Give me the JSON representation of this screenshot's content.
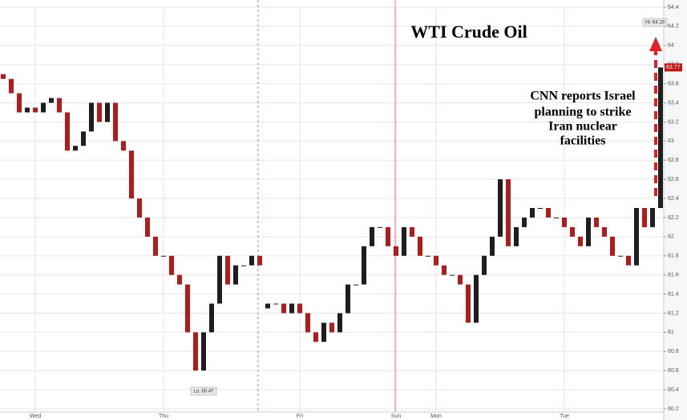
{
  "chart_data": {
    "type": "candlestick",
    "title": "WTI Crude Oil",
    "categories": [
      null,
      null,
      null,
      null,
      "Wed",
      null,
      null,
      null,
      null,
      null,
      null,
      null,
      null,
      null,
      null,
      null,
      null,
      null,
      null,
      null,
      "Thu",
      null,
      null,
      null,
      null,
      null,
      null,
      null,
      null,
      null,
      null,
      null,
      null,
      null,
      null,
      null,
      null,
      "Fri",
      null,
      null,
      null,
      null,
      null,
      null,
      null,
      null,
      null,
      null,
      null,
      "Sun",
      null,
      null,
      null,
      null,
      "Mon",
      null,
      null,
      null,
      null,
      null,
      null,
      null,
      null,
      null,
      null,
      null,
      null,
      null,
      null,
      null,
      "Tue",
      null,
      null,
      null,
      null,
      null,
      null,
      null,
      null,
      null,
      null,
      null,
      null
    ],
    "open": [
      63.7,
      63.65,
      63.5,
      63.3,
      63.35,
      63.3,
      63.4,
      63.45,
      63.3,
      62.9,
      62.95,
      63.1,
      63.4,
      63.2,
      63.4,
      63.0,
      62.9,
      62.4,
      62.2,
      62.0,
      61.8,
      61.8,
      61.6,
      61.5,
      61.0,
      60.6,
      61.0,
      61.3,
      61.8,
      61.5,
      61.7,
      61.7,
      61.8,
      61.25,
      61.3,
      61.3,
      61.2,
      61.3,
      61.2,
      61.0,
      60.9,
      61.1,
      61.0,
      61.2,
      61.5,
      61.5,
      61.9,
      62.1,
      62.1,
      61.9,
      61.8,
      62.1,
      62.0,
      61.8,
      61.8,
      61.7,
      61.6,
      61.6,
      61.5,
      61.1,
      61.6,
      61.8,
      62.0,
      62.6,
      61.9,
      62.1,
      62.2,
      62.3,
      62.3,
      62.2,
      62.2,
      62.1,
      62.0,
      61.9,
      62.2,
      62.1,
      62.0,
      61.8,
      61.8,
      61.7,
      62.3,
      62.1,
      62.3
    ],
    "close": [
      63.65,
      63.5,
      63.3,
      63.35,
      63.3,
      63.4,
      63.45,
      63.3,
      62.9,
      62.95,
      63.1,
      63.4,
      63.2,
      63.4,
      63.0,
      62.9,
      62.4,
      62.2,
      62.0,
      61.8,
      61.8,
      61.6,
      61.5,
      61.0,
      60.6,
      61.0,
      61.3,
      61.8,
      61.5,
      61.7,
      61.7,
      61.8,
      61.7,
      61.3,
      61.3,
      61.2,
      61.3,
      61.2,
      61.0,
      60.9,
      61.1,
      61.0,
      61.2,
      61.5,
      61.5,
      61.9,
      62.1,
      62.1,
      61.9,
      61.8,
      62.1,
      62.0,
      61.8,
      61.8,
      61.7,
      61.6,
      61.6,
      61.5,
      61.1,
      61.6,
      61.8,
      62.0,
      62.6,
      61.9,
      62.1,
      62.2,
      62.3,
      62.3,
      62.2,
      62.2,
      62.1,
      62.0,
      61.9,
      62.2,
      62.1,
      62.0,
      61.8,
      61.8,
      61.7,
      62.3,
      62.1,
      62.3,
      63.77
    ],
    "up_color": "#1e1e1e",
    "down_color": "#b01c1c",
    "ylim": [
      60.2,
      64.4
    ],
    "yticks": [
      60.2,
      60.4,
      60.6,
      60.8,
      61,
      61.2,
      61.4,
      61.6,
      61.8,
      62,
      62.2,
      62.4,
      62.6,
      62.8,
      63,
      63.2,
      63.4,
      63.6,
      63.8,
      64,
      64.2,
      64.4
    ],
    "grid": true,
    "last_price": 63.77,
    "high_label": "Hi: 64.19",
    "low_label": "Lo: 60.47",
    "annotation": [
      "CNN reports Israel",
      "planning  to strike",
      "Iran nuclear",
      "facilities"
    ]
  }
}
